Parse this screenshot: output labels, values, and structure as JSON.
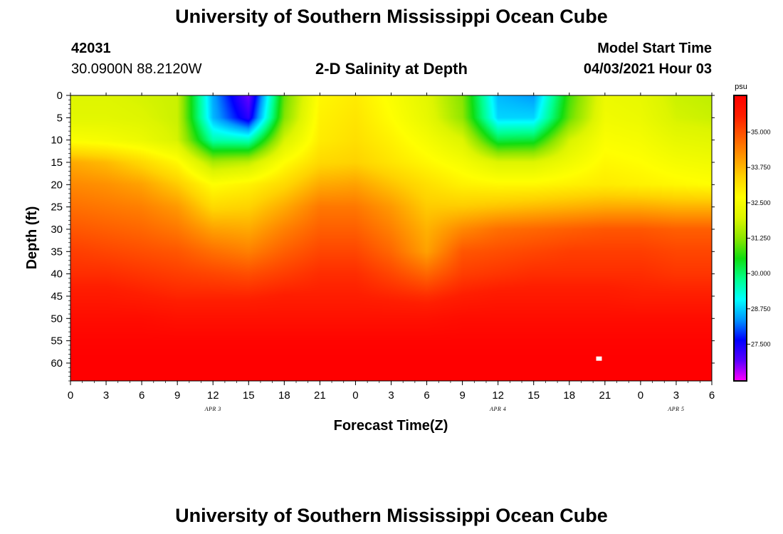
{
  "page": {
    "title_top": "University of Southern Mississippi Ocean Cube",
    "title_bottom": "University of Southern Mississippi Ocean Cube",
    "station_id": "42031",
    "coordinates": "30.0900N  88.2120W",
    "plot_title": "2-D Salinity at Depth",
    "model_start_label": "Model Start Time",
    "model_start_value": "04/03/2021 Hour 03"
  },
  "chart_data": {
    "type": "heatmap",
    "title": "2-D Salinity at Depth",
    "xlabel": "Forecast Time(Z)",
    "ylabel": "Depth (ft)",
    "x_ticks": [
      "0",
      "3",
      "6",
      "9",
      "12",
      "15",
      "18",
      "21",
      "0",
      "3",
      "6",
      "9",
      "12",
      "15",
      "18",
      "21",
      "0",
      "3",
      "6"
    ],
    "x_hours": [
      0,
      3,
      6,
      9,
      12,
      15,
      18,
      21,
      24,
      27,
      30,
      33,
      36,
      39,
      42,
      45,
      48,
      51,
      54
    ],
    "xlim": [
      0,
      54
    ],
    "date_labels": [
      {
        "text": "APR 3",
        "hour": 12
      },
      {
        "text": "APR 4",
        "hour": 36
      },
      {
        "text": "APR 5",
        "hour": 51
      }
    ],
    "y_ticks": [
      0,
      5,
      10,
      15,
      20,
      25,
      30,
      35,
      40,
      45,
      50,
      55,
      60
    ],
    "ylim": [
      0,
      64
    ],
    "y_inverted": true,
    "colorbar": {
      "unit": "psu",
      "ticks": [
        "35.000",
        "33.750",
        "32.500",
        "31.250",
        "30.000",
        "28.750",
        "27.500"
      ],
      "tick_values": [
        35.0,
        33.75,
        32.5,
        31.25,
        30.0,
        28.75,
        27.5
      ],
      "range": [
        26.2,
        36.3
      ],
      "colors": [
        "#ff00ff",
        "#5a00ff",
        "#0000ff",
        "#0096ff",
        "#00ffff",
        "#00ff8c",
        "#10dd10",
        "#8ce600",
        "#ddf500",
        "#ffff00",
        "#ffd200",
        "#ff9600",
        "#ff5a00",
        "#ff1e00",
        "#ff0000"
      ]
    },
    "depth_rows": [
      0,
      5,
      10,
      15,
      20,
      25,
      30,
      35,
      40,
      45,
      50,
      55,
      60,
      64
    ],
    "time_cols": [
      0,
      3,
      6,
      9,
      12,
      15,
      18,
      21,
      24,
      27,
      30,
      33,
      36,
      39,
      42,
      45,
      48,
      51,
      54
    ],
    "salinity_grid": [
      [
        32.0,
        32.0,
        31.9,
        31.8,
        28.5,
        26.8,
        31.0,
        32.8,
        33.0,
        32.6,
        32.1,
        31.2,
        28.6,
        28.4,
        30.8,
        32.3,
        32.2,
        31.8,
        31.7
      ],
      [
        32.1,
        32.1,
        32.0,
        31.8,
        28.6,
        27.3,
        31.2,
        32.9,
        33.1,
        32.7,
        32.2,
        31.3,
        28.8,
        28.8,
        31.0,
        32.4,
        32.3,
        31.9,
        31.8
      ],
      [
        32.6,
        32.5,
        32.3,
        31.9,
        29.6,
        29.5,
        31.9,
        33.0,
        33.2,
        32.9,
        32.5,
        32.0,
        30.2,
        30.3,
        31.9,
        32.6,
        32.5,
        32.2,
        32.1
      ],
      [
        33.9,
        33.7,
        33.3,
        32.8,
        31.5,
        31.7,
        32.7,
        33.3,
        33.4,
        33.1,
        32.8,
        32.5,
        32.0,
        32.0,
        32.4,
        32.8,
        32.7,
        32.5,
        32.4
      ],
      [
        34.3,
        34.2,
        34.0,
        33.5,
        32.7,
        32.9,
        33.3,
        33.9,
        34.0,
        33.6,
        33.2,
        32.9,
        32.8,
        32.8,
        32.9,
        33.0,
        32.9,
        32.8,
        32.7
      ],
      [
        34.6,
        34.5,
        34.4,
        34.1,
        33.3,
        33.4,
        33.9,
        34.5,
        34.5,
        34.1,
        33.5,
        33.5,
        33.6,
        33.7,
        33.8,
        33.9,
        33.9,
        33.8,
        33.8
      ],
      [
        34.9,
        34.8,
        34.7,
        34.5,
        34.0,
        33.9,
        34.4,
        34.8,
        34.8,
        34.4,
        33.8,
        34.3,
        34.6,
        34.7,
        34.8,
        34.9,
        34.9,
        34.8,
        34.8
      ],
      [
        35.2,
        35.1,
        35.0,
        34.9,
        34.6,
        34.4,
        34.8,
        35.1,
        35.1,
        34.7,
        34.0,
        34.9,
        35.0,
        35.1,
        35.2,
        35.2,
        35.2,
        35.1,
        35.1
      ],
      [
        35.4,
        35.4,
        35.3,
        35.2,
        35.1,
        35.0,
        35.2,
        35.4,
        35.4,
        35.1,
        34.7,
        35.2,
        35.3,
        35.4,
        35.4,
        35.4,
        35.4,
        35.3,
        35.3
      ],
      [
        35.7,
        35.7,
        35.6,
        35.5,
        35.5,
        35.5,
        35.6,
        35.6,
        35.6,
        35.5,
        35.4,
        35.6,
        35.7,
        35.7,
        35.7,
        35.7,
        35.6,
        35.6,
        35.6
      ],
      [
        36.0,
        36.0,
        36.0,
        35.9,
        35.9,
        35.9,
        35.9,
        35.9,
        35.9,
        35.9,
        35.9,
        36.0,
        36.0,
        36.0,
        36.0,
        36.0,
        36.0,
        36.0,
        36.0
      ],
      [
        36.2,
        36.2,
        36.2,
        36.2,
        36.2,
        36.2,
        36.2,
        36.2,
        36.2,
        36.2,
        36.2,
        36.2,
        36.2,
        36.2,
        36.2,
        36.2,
        36.2,
        36.2,
        36.2
      ],
      [
        36.3,
        36.3,
        36.3,
        36.3,
        36.3,
        36.3,
        36.3,
        36.3,
        36.3,
        36.3,
        36.3,
        36.3,
        36.3,
        36.3,
        36.3,
        36.3,
        36.3,
        36.3,
        36.3
      ],
      [
        36.3,
        36.3,
        36.3,
        36.3,
        36.3,
        36.3,
        36.3,
        36.3,
        36.3,
        36.3,
        36.3,
        36.3,
        36.3,
        36.3,
        36.3,
        36.3,
        36.3,
        36.3,
        36.3
      ]
    ],
    "markers": [
      {
        "hour": 44.5,
        "depth": 59,
        "color": "#ffffff"
      }
    ]
  }
}
